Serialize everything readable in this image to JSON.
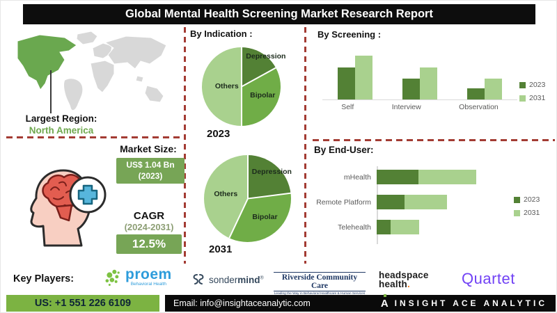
{
  "title": "Global Mental Health Screening Market Research Report",
  "colors": {
    "dark_green": "#538135",
    "mid_green": "#70AD47",
    "light_green": "#A9D18E",
    "map_green": "#6AA84F",
    "map_gray": "#D8D8D8",
    "dash_red": "#A33B33",
    "box_green": "#77A556",
    "footer_green": "#7CB342",
    "quartet_purple": "#7142F5",
    "proem_blue": "#2D9CDB"
  },
  "map": {
    "largest_region_label": "Largest Region:",
    "region_name": "North America"
  },
  "market": {
    "size_label": "Market Size:",
    "size_value": "US$ 1.04 Bn (2023)",
    "cagr_label": "CAGR",
    "cagr_period": "(2024-2031)",
    "cagr_value": "12.5%"
  },
  "chart_data": [
    {
      "type": "pie",
      "title": "By Indication :",
      "year_label": "2023",
      "labels": [
        "Depression",
        "Bipolar",
        "Others"
      ],
      "values": [
        17,
        33,
        50
      ],
      "colors": [
        "#538135",
        "#70AD47",
        "#A9D18E"
      ],
      "note": "shares estimated from slice angles; no data labels shown"
    },
    {
      "type": "pie",
      "title": "By Indication :",
      "year_label": "2031",
      "labels": [
        "Depression",
        "Bipolar",
        "Others"
      ],
      "values": [
        23,
        34,
        43
      ],
      "colors": [
        "#538135",
        "#70AD47",
        "#A9D18E"
      ],
      "note": "shares estimated from slice angles; no data labels shown"
    },
    {
      "type": "bar",
      "title": "By  Screening :",
      "categories": [
        "Self",
        "Interview",
        "Observation"
      ],
      "series": [
        {
          "name": "2023",
          "color": "#538135",
          "values": [
            46,
            30,
            16
          ]
        },
        {
          "name": "2031",
          "color": "#A9D18E",
          "values": [
            63,
            46,
            30
          ]
        }
      ],
      "ylim": [
        0,
        70
      ],
      "legend_position": "right",
      "grid": false,
      "note": "no value axis shown; values are relative estimates"
    },
    {
      "type": "bar-horizontal-stacked",
      "title": "By End-User:",
      "categories": [
        "mHealth",
        "Remote Platform",
        "Telehealth"
      ],
      "series": [
        {
          "name": "2023",
          "color": "#538135",
          "values": [
            60,
            40,
            20
          ]
        },
        {
          "name": "2031",
          "color": "#A9D18E",
          "values": [
            83,
            61,
            41
          ]
        }
      ],
      "xlim": [
        0,
        160
      ],
      "legend_position": "right",
      "grid": false,
      "note": "no value axis shown; values are relative estimates"
    }
  ],
  "key_players": {
    "label": "Key Players:",
    "proem": {
      "name": "proem",
      "tagline": "Behavioral Health"
    },
    "sondermind": {
      "name_regular": "sonder",
      "name_bold": "mind",
      "reg_mark": "®"
    },
    "riverside": {
      "name": "Riverside Community Care",
      "tagline": "Leading the Way in Behavioral Healthcare & Human Services"
    },
    "headspace": {
      "line1": "headspace",
      "line2": "health",
      "dot": "."
    },
    "quartet": {
      "name": "Quartet"
    }
  },
  "footer": {
    "phone": "US: +1 551 226 6109",
    "email": "Email: info@insightaceanalytic.com",
    "brand_mark": "A",
    "brand": "INSIGHT ACE ANALYTIC"
  }
}
